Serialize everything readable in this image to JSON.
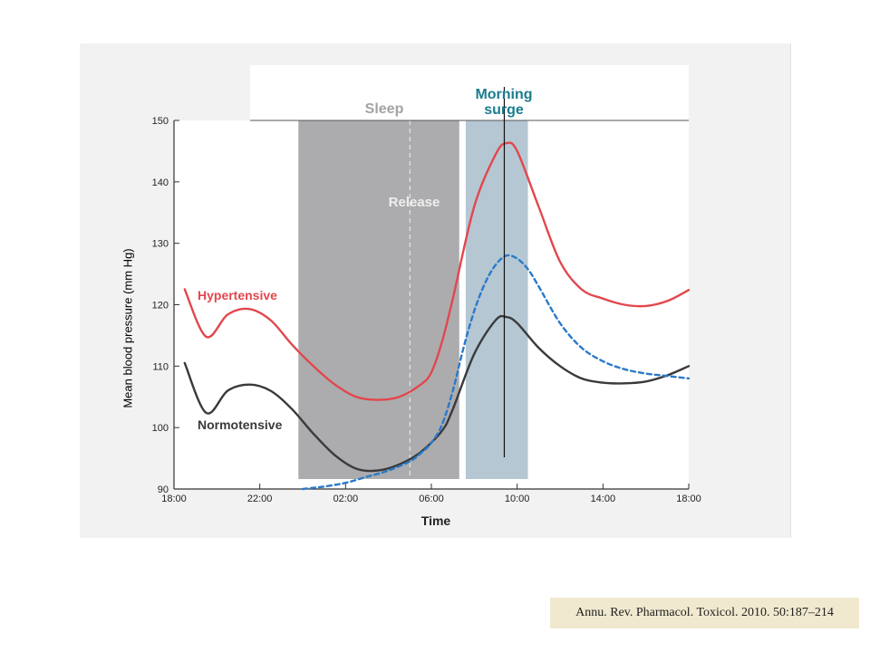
{
  "chart_data": {
    "type": "line",
    "ylabel": "Mean blood pressure (mm Hg)",
    "xlabel": "Time",
    "ylim": [
      90,
      150
    ],
    "yticks": [
      "90",
      "100",
      "110",
      "120",
      "130",
      "140",
      "150"
    ],
    "xticks": [
      "18:00",
      "22:00",
      "02:00",
      "06:00",
      "10:00",
      "14:00",
      "18:00"
    ],
    "regions": {
      "sleep": {
        "label": "Sleep",
        "start_hour": 23.8,
        "end_hour": 31.3,
        "color": "#acacae"
      },
      "release_label": "Release",
      "release_hour": 29.0,
      "morning_surge": {
        "label": [
          "Morning",
          "surge"
        ],
        "start_hour": 31.6,
        "end_hour": 34.5,
        "color": "#b5c7d3",
        "label_color": "#1b7c8e"
      }
    },
    "surge_marker_hour": 33.4,
    "series": [
      {
        "name": "Hypertensive",
        "color": "#e2474d",
        "style": "solid",
        "points": [
          [
            18.5,
            122.5
          ],
          [
            19.5,
            114.8
          ],
          [
            20.5,
            118.4
          ],
          [
            21.5,
            119.3
          ],
          [
            22.5,
            117.5
          ],
          [
            23.5,
            113.5
          ],
          [
            24.5,
            110.0
          ],
          [
            25.5,
            107.0
          ],
          [
            26.5,
            105.0
          ],
          [
            27.5,
            104.5
          ],
          [
            28.5,
            105.0
          ],
          [
            29.5,
            107.0
          ],
          [
            30.0,
            109.0
          ],
          [
            30.5,
            114.0
          ],
          [
            31.0,
            121.0
          ],
          [
            32.0,
            136.0
          ],
          [
            33.0,
            144.5
          ],
          [
            33.5,
            146.3
          ],
          [
            34.0,
            145.0
          ],
          [
            35.0,
            136.0
          ],
          [
            36.0,
            127.0
          ],
          [
            37.0,
            122.5
          ],
          [
            38.0,
            121.0
          ],
          [
            39.0,
            120.0
          ],
          [
            40.0,
            119.8
          ],
          [
            41.0,
            120.6
          ],
          [
            42.0,
            122.4
          ]
        ]
      },
      {
        "name": "Normotensive",
        "color": "#3a3a3c",
        "style": "solid",
        "points": [
          [
            18.5,
            110.5
          ],
          [
            19.5,
            102.4
          ],
          [
            20.5,
            106.0
          ],
          [
            21.5,
            107.0
          ],
          [
            22.5,
            106.0
          ],
          [
            23.5,
            103.0
          ],
          [
            24.5,
            99.0
          ],
          [
            25.5,
            95.5
          ],
          [
            26.5,
            93.3
          ],
          [
            27.5,
            93.0
          ],
          [
            28.5,
            94.0
          ],
          [
            29.5,
            96.0
          ],
          [
            30.5,
            99.5
          ],
          [
            31.0,
            103.0
          ],
          [
            32.0,
            112.0
          ],
          [
            33.0,
            117.5
          ],
          [
            33.5,
            118.0
          ],
          [
            34.0,
            117.0
          ],
          [
            35.0,
            113.0
          ],
          [
            36.0,
            110.0
          ],
          [
            37.0,
            108.0
          ],
          [
            38.0,
            107.3
          ],
          [
            39.0,
            107.2
          ],
          [
            40.0,
            107.5
          ],
          [
            41.0,
            108.5
          ],
          [
            42.0,
            110.0
          ]
        ]
      },
      {
        "name": "",
        "color": "#2a7ac8",
        "style": "dashed",
        "points": [
          [
            24.0,
            90.0
          ],
          [
            25.0,
            90.4
          ],
          [
            26.0,
            91.0
          ],
          [
            27.0,
            92.0
          ],
          [
            28.0,
            93.0
          ],
          [
            29.0,
            94.5
          ],
          [
            29.5,
            95.8
          ],
          [
            30.0,
            97.5
          ],
          [
            30.5,
            100.5
          ],
          [
            31.0,
            106.0
          ],
          [
            31.5,
            113.0
          ],
          [
            32.0,
            119.0
          ],
          [
            32.5,
            123.5
          ],
          [
            33.0,
            126.5
          ],
          [
            33.5,
            128.0
          ],
          [
            34.0,
            127.5
          ],
          [
            34.5,
            125.8
          ],
          [
            35.0,
            123.0
          ],
          [
            36.0,
            117.0
          ],
          [
            37.0,
            113.0
          ],
          [
            38.0,
            110.8
          ],
          [
            39.0,
            109.5
          ],
          [
            40.0,
            108.8
          ],
          [
            41.0,
            108.4
          ],
          [
            42.0,
            108.0
          ]
        ]
      }
    ],
    "grid": false
  },
  "citation": "Annu. Rev. Pharmacol. Toxicol. 2010. 50:187–214"
}
